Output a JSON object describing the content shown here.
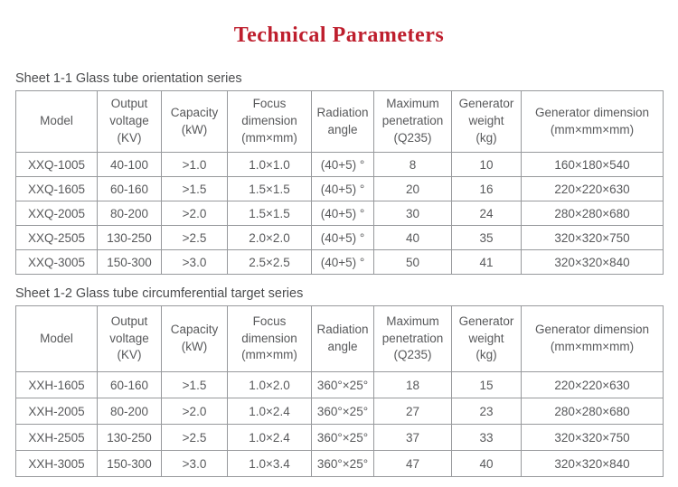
{
  "title": "Technical Parameters",
  "colors": {
    "title_red": "#be1e2d",
    "text_gray": "#58595b",
    "border_gray": "#97999c"
  },
  "tables": [
    {
      "caption": "Sheet 1-1 Glass tube orientation series",
      "headers": [
        "Model",
        "Output\nvoltage\n(KV)",
        "Capacity\n(kW)",
        "Focus\ndimension\n(mm×mm)",
        "Radiation\nangle",
        "Maximum\npenetration\n(Q235)",
        "Generator\nweight\n(kg)",
        "Generator dimension\n(mm×mm×mm)"
      ],
      "rows": [
        [
          "XXQ-1005",
          "40-100",
          ">1.0",
          "1.0×1.0",
          "(40+5) °",
          "8",
          "10",
          "160×180×540"
        ],
        [
          "XXQ-1605",
          "60-160",
          ">1.5",
          "1.5×1.5",
          "(40+5) °",
          "20",
          "16",
          "220×220×630"
        ],
        [
          "XXQ-2005",
          "80-200",
          ">2.0",
          "1.5×1.5",
          "(40+5) °",
          "30",
          "24",
          "280×280×680"
        ],
        [
          "XXQ-2505",
          "130-250",
          ">2.5",
          "2.0×2.0",
          "(40+5) °",
          "40",
          "35",
          "320×320×750"
        ],
        [
          "XXQ-3005",
          "150-300",
          ">3.0",
          "2.5×2.5",
          "(40+5) °",
          "50",
          "41",
          "320×320×840"
        ]
      ]
    },
    {
      "caption": "Sheet 1-2 Glass tube circumferential target series",
      "headers": [
        "Model",
        "Output\nvoltage\n(KV)",
        "Capacity\n(kW)",
        "Focus\ndimension\n(mm×mm)",
        "Radiation\nangle",
        "Maximum\npenetration\n(Q235)",
        "Generator\nweight\n(kg)",
        "Generator dimension\n(mm×mm×mm)"
      ],
      "rows": [
        [
          "XXH-1605",
          "60-160",
          ">1.5",
          "1.0×2.0",
          "360°×25°",
          "18",
          "15",
          "220×220×630"
        ],
        [
          "XXH-2005",
          "80-200",
          ">2.0",
          "1.0×2.4",
          "360°×25°",
          "27",
          "23",
          "280×280×680"
        ],
        [
          "XXH-2505",
          "130-250",
          ">2.5",
          "1.0×2.4",
          "360°×25°",
          "37",
          "33",
          "320×320×750"
        ],
        [
          "XXH-3005",
          "150-300",
          ">3.0",
          "1.0×3.4",
          "360°×25°",
          "47",
          "40",
          "320×320×840"
        ]
      ]
    }
  ]
}
